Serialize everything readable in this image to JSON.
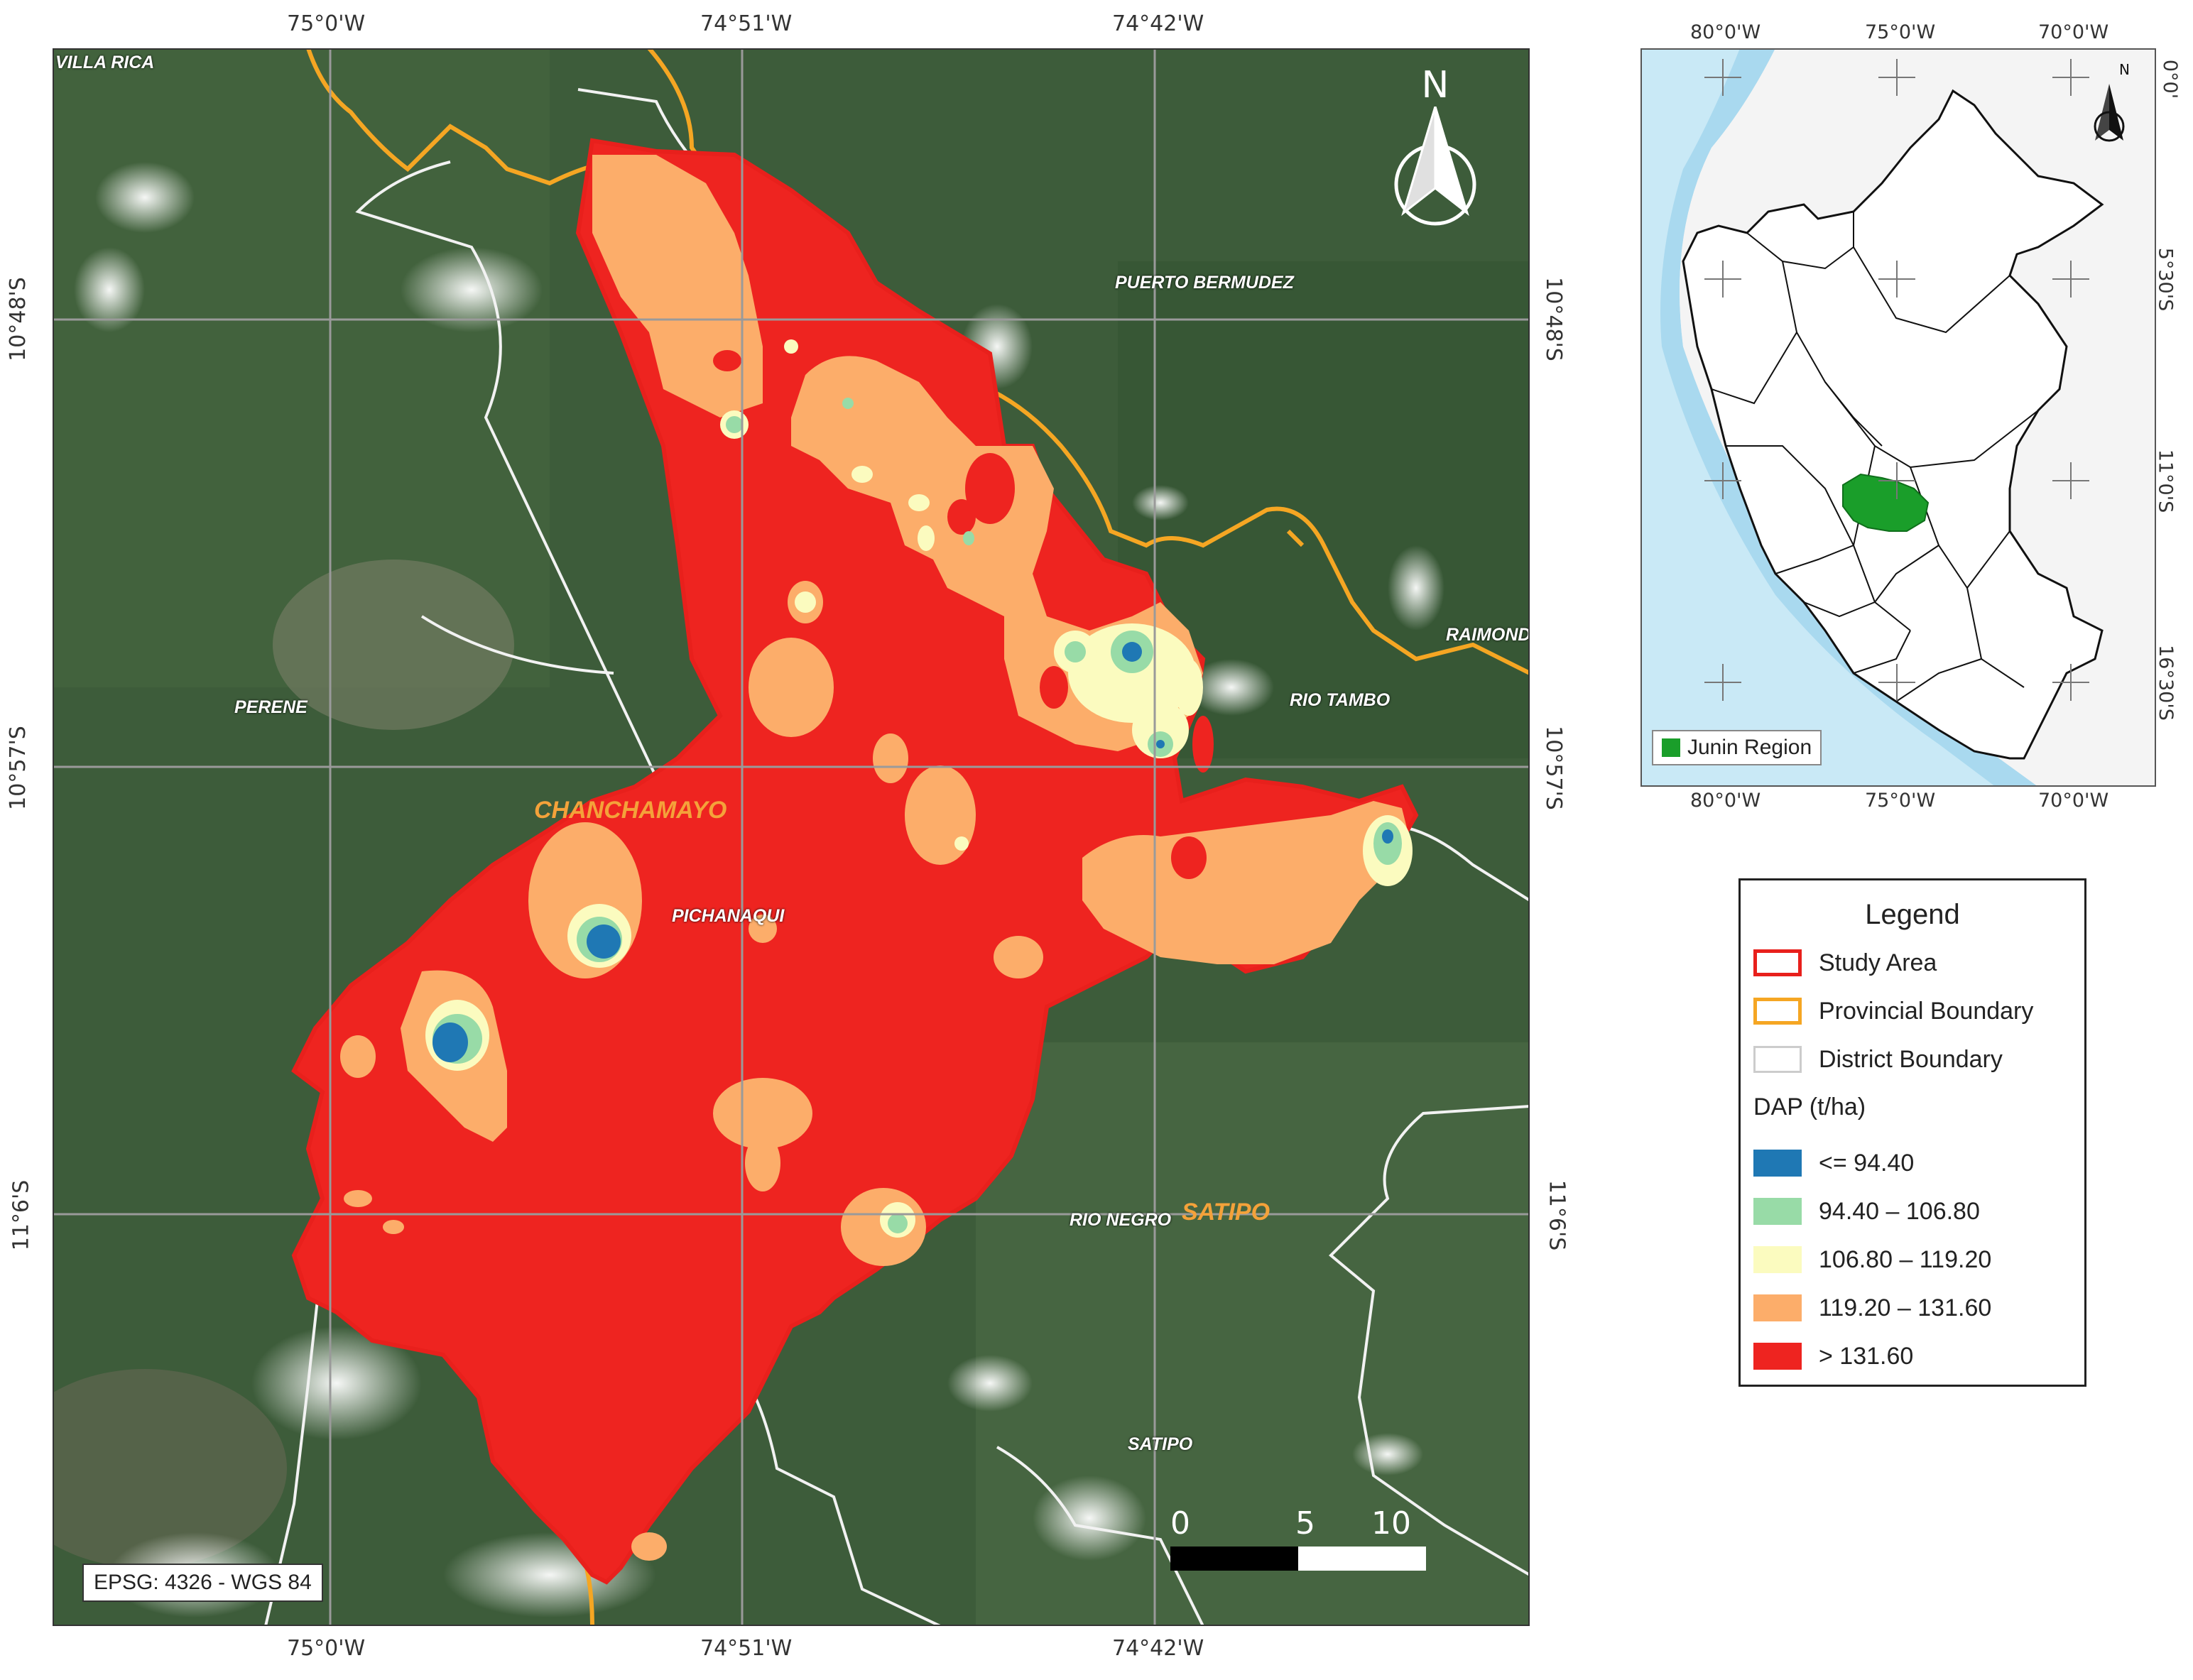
{
  "main_map": {
    "top_coords": [
      "75°0'W",
      "74°51'W",
      "74°42'W"
    ],
    "bottom_coords": [
      "75°0'W",
      "74°51'W",
      "74°42'W"
    ],
    "left_coords": [
      "10°48'S",
      "10°57'S",
      "11°6'S"
    ],
    "right_coords": [
      "10°48'S",
      "10°57'S",
      "11°6'S"
    ],
    "place_labels": {
      "villa_rica": "VILLA RICA",
      "puerto_bermudez": "PUERTO BERMUDEZ",
      "raimondi": "RAIMONDI",
      "perene": "PERENE",
      "rio_tambo": "RIO TAMBO",
      "pichanaqui": "PICHANAQUI",
      "rio_negro": "RIO NEGRO",
      "satipo_district": "SATIPO"
    },
    "province_labels": {
      "chanchamayo": "CHANCHAMAYO",
      "satipo": "SATIPO"
    },
    "north_arrow": "N",
    "scale_bar": {
      "labels": [
        "0",
        "5",
        "10 km"
      ]
    },
    "crs_label": "EPSG: 4326 - WGS 84"
  },
  "inset_map": {
    "top_coords": [
      "80°0'W",
      "75°0'W",
      "70°0'W"
    ],
    "bottom_coords": [
      "80°0'W",
      "75°0'W",
      "70°0'W"
    ],
    "right_coords": [
      "0°0'",
      "5°30'S",
      "11°0'S",
      "16°30'S"
    ],
    "north_arrow": "N",
    "legend_label": "Junin Region",
    "region_color": "#1a9e2a"
  },
  "legend": {
    "title": "Legend",
    "items": [
      {
        "label": "Study Area",
        "color": "#e8201c"
      },
      {
        "label": "Provincial Boundary",
        "color": "#f5a623"
      },
      {
        "label": "District Boundary",
        "color": "#dddddd"
      }
    ],
    "dap_title": "DAP (t/ha)",
    "classes": [
      {
        "label": "<= 94.40",
        "color": "#1f78b4"
      },
      {
        "label": "94.40 – 106.80",
        "color": "#98dba7"
      },
      {
        "label": "106.80 – 119.20",
        "color": "#fbfbbf"
      },
      {
        "label": "119.20 – 131.60",
        "color": "#fcad6a"
      },
      {
        "label": "> 131.60",
        "color": "#ee2420"
      }
    ]
  }
}
